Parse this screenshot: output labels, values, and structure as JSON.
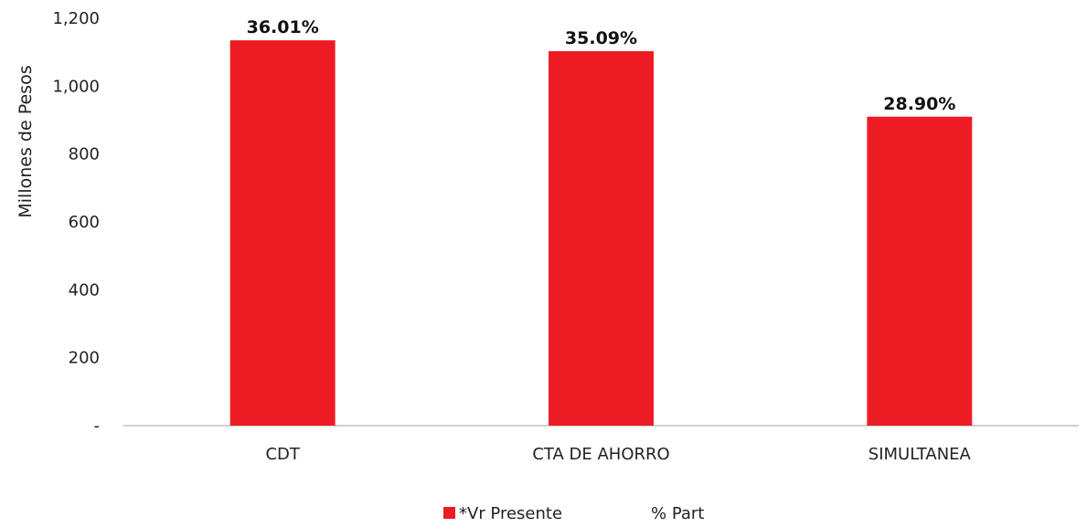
{
  "chart_data": {
    "type": "bar",
    "categories": [
      "CDT",
      "CTA DE AHORRO",
      "SIMULTANEA"
    ],
    "series": [
      {
        "name": "*Vr Presente",
        "values": [
          1135,
          1103,
          910
        ],
        "data_labels": [
          "36.01%",
          "35.09%",
          "28.90%"
        ],
        "color": "#ED1C24"
      },
      {
        "name": "% Part",
        "values": [
          36.01,
          35.09,
          28.9
        ],
        "unit": "%"
      }
    ],
    "ylabel": "Millones de Pesos",
    "xlabel": "",
    "ylim": [
      0,
      1200
    ],
    "yticks": [
      {
        "value": 0,
        "label": "-"
      },
      {
        "value": 200,
        "label": "200"
      },
      {
        "value": 400,
        "label": "400"
      },
      {
        "value": 600,
        "label": "600"
      },
      {
        "value": 800,
        "label": "800"
      },
      {
        "value": 1000,
        "label": "1,000"
      },
      {
        "value": 1200,
        "label": "1,200"
      }
    ],
    "grid": false,
    "legend_position": "bottom",
    "axis_color": "#BFBFBF"
  }
}
